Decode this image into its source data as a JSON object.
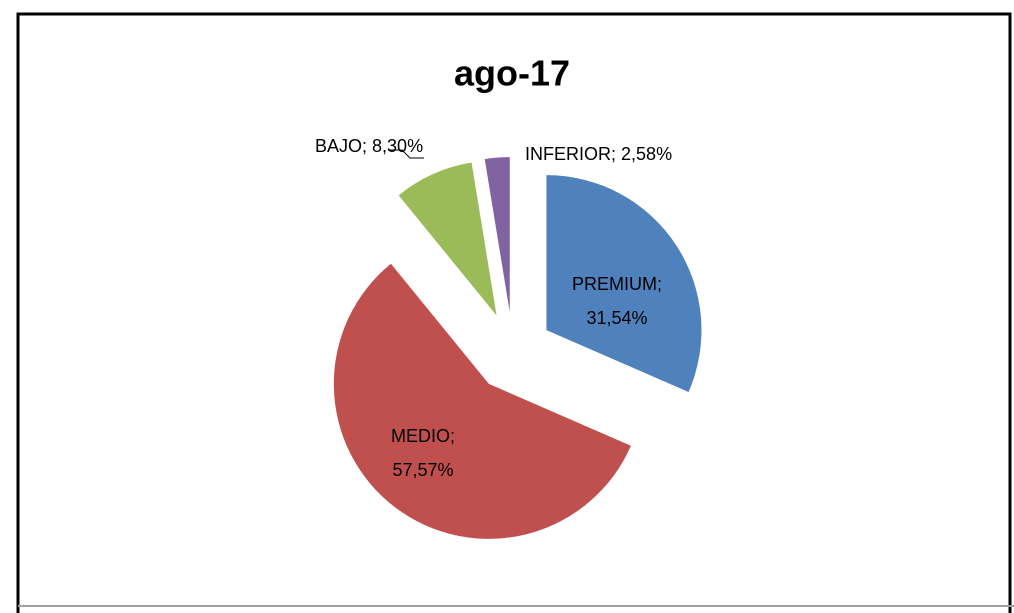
{
  "chart_data": {
    "type": "pie",
    "title": "ago-17",
    "categories": [
      "PREMIUM",
      "MEDIO",
      "BAJO",
      "INFERIOR"
    ],
    "values": [
      31.54,
      57.57,
      8.3,
      2.58
    ],
    "value_labels": [
      "31,54%",
      "57,57%",
      "8,30%",
      "2,58%"
    ],
    "label_separator": ";",
    "colors": [
      "#4f81bd",
      "#c0504d",
      "#9bbb59",
      "#8064a2"
    ],
    "exploded": true
  }
}
